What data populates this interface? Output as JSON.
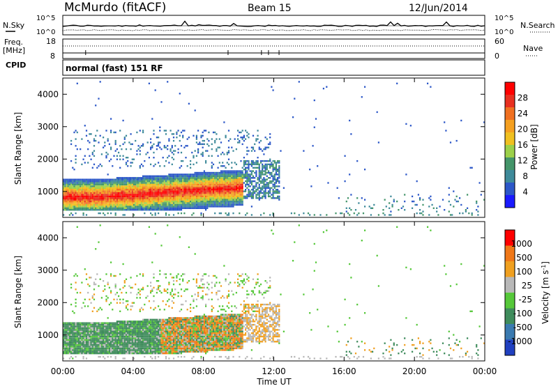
{
  "header": {
    "station": "McMurdo (fitACF)",
    "beam": "Beam 15",
    "date": "12/Jun/2014",
    "cpid": "normal (fast) 151 RF"
  },
  "panel_labels": {
    "nsky": "N.Sky",
    "nsearch": "N.Search",
    "freq": "Freq.",
    "mhz": "[MHz]",
    "nave": "Nave",
    "cpid_label": "CPID"
  },
  "chart_data": [
    {
      "type": "line",
      "name": "noise",
      "left_ticks": [
        "10^5",
        "10^0"
      ],
      "right_ticks": [
        "10^5",
        "10^0"
      ],
      "series": [
        {
          "name": "N.Sky",
          "style": "solid",
          "description": "near 10^2, nearly constant with small spikes"
        },
        {
          "name": "N.Search",
          "style": "dotted",
          "description": "near 10^0.5, nearly constant"
        }
      ]
    },
    {
      "type": "line",
      "name": "freq-nave",
      "left_ticks": [
        "18",
        "8"
      ],
      "right_ticks": [
        "60",
        "0"
      ],
      "series": [
        {
          "name": "Freq.",
          "style": "solid",
          "description": "constant around 10 MHz"
        },
        {
          "name": "Nave",
          "style": "dotted",
          "description": "constant around 35"
        }
      ]
    },
    {
      "type": "heatmap",
      "name": "power",
      "ylabel": "Slant Range [km]",
      "yticks": [
        "1000",
        "2000",
        "3000",
        "4000"
      ],
      "ylim": [
        200,
        4500
      ],
      "xlim": [
        0,
        24
      ],
      "colorbar": {
        "label": "Power [dB]",
        "ticks": [
          "4",
          "8",
          "12",
          "16",
          "20",
          "24",
          "28"
        ],
        "range": [
          0,
          30
        ],
        "colors": [
          "#1a1aff",
          "#2c57c8",
          "#3e8a9a",
          "#44956a",
          "#9cd04a",
          "#f0c020",
          "#f5a020",
          "#f07020",
          "#e83020",
          "#ff0000"
        ]
      },
      "regions": [
        {
          "t0": 0.0,
          "t1": 10.2,
          "r0": 500,
          "r1": 1600,
          "level": "strong",
          "peak_db": 30
        },
        {
          "t0": 0.5,
          "t1": 11.8,
          "r0": 1700,
          "r1": 2900,
          "level": "weak",
          "peak_db": 8
        },
        {
          "t0": 16.5,
          "t1": 24.0,
          "r0": 400,
          "r1": 900,
          "level": "weak",
          "peak_db": 10
        }
      ]
    },
    {
      "type": "heatmap",
      "name": "velocity",
      "ylabel": "Slant Range [km]",
      "yticks": [
        "1000",
        "2000",
        "3000",
        "4000"
      ],
      "ylim": [
        200,
        4500
      ],
      "xlim": [
        0,
        24
      ],
      "colorbar": {
        "label": "Velocity [m s^-1]",
        "ticks": [
          "1000",
          "500",
          "100",
          "25",
          "-25",
          "-100",
          "-500",
          "-1000"
        ],
        "colors": [
          "#2040c0",
          "#3a7ab0",
          "#3f8c5c",
          "#56c83a",
          "#b8b8b8",
          "#f0a020",
          "#f07818",
          "#ff0000"
        ]
      },
      "regions": [
        {
          "t0": 0.0,
          "t1": 10.2,
          "r0": 500,
          "r1": 1600,
          "dominant": "toward (green)"
        },
        {
          "t0": 5.0,
          "t1": 12.2,
          "r0": 600,
          "r1": 2000,
          "dominant": "away (orange)"
        },
        {
          "t0": 18.0,
          "t1": 24.0,
          "r0": 400,
          "r1": 900,
          "dominant": "mixed"
        }
      ]
    }
  ],
  "time_axis": {
    "ticks": [
      "00:00",
      "04:00",
      "08:00",
      "12:00",
      "16:00",
      "20:00",
      "00:00"
    ],
    "label": "Time UT"
  }
}
